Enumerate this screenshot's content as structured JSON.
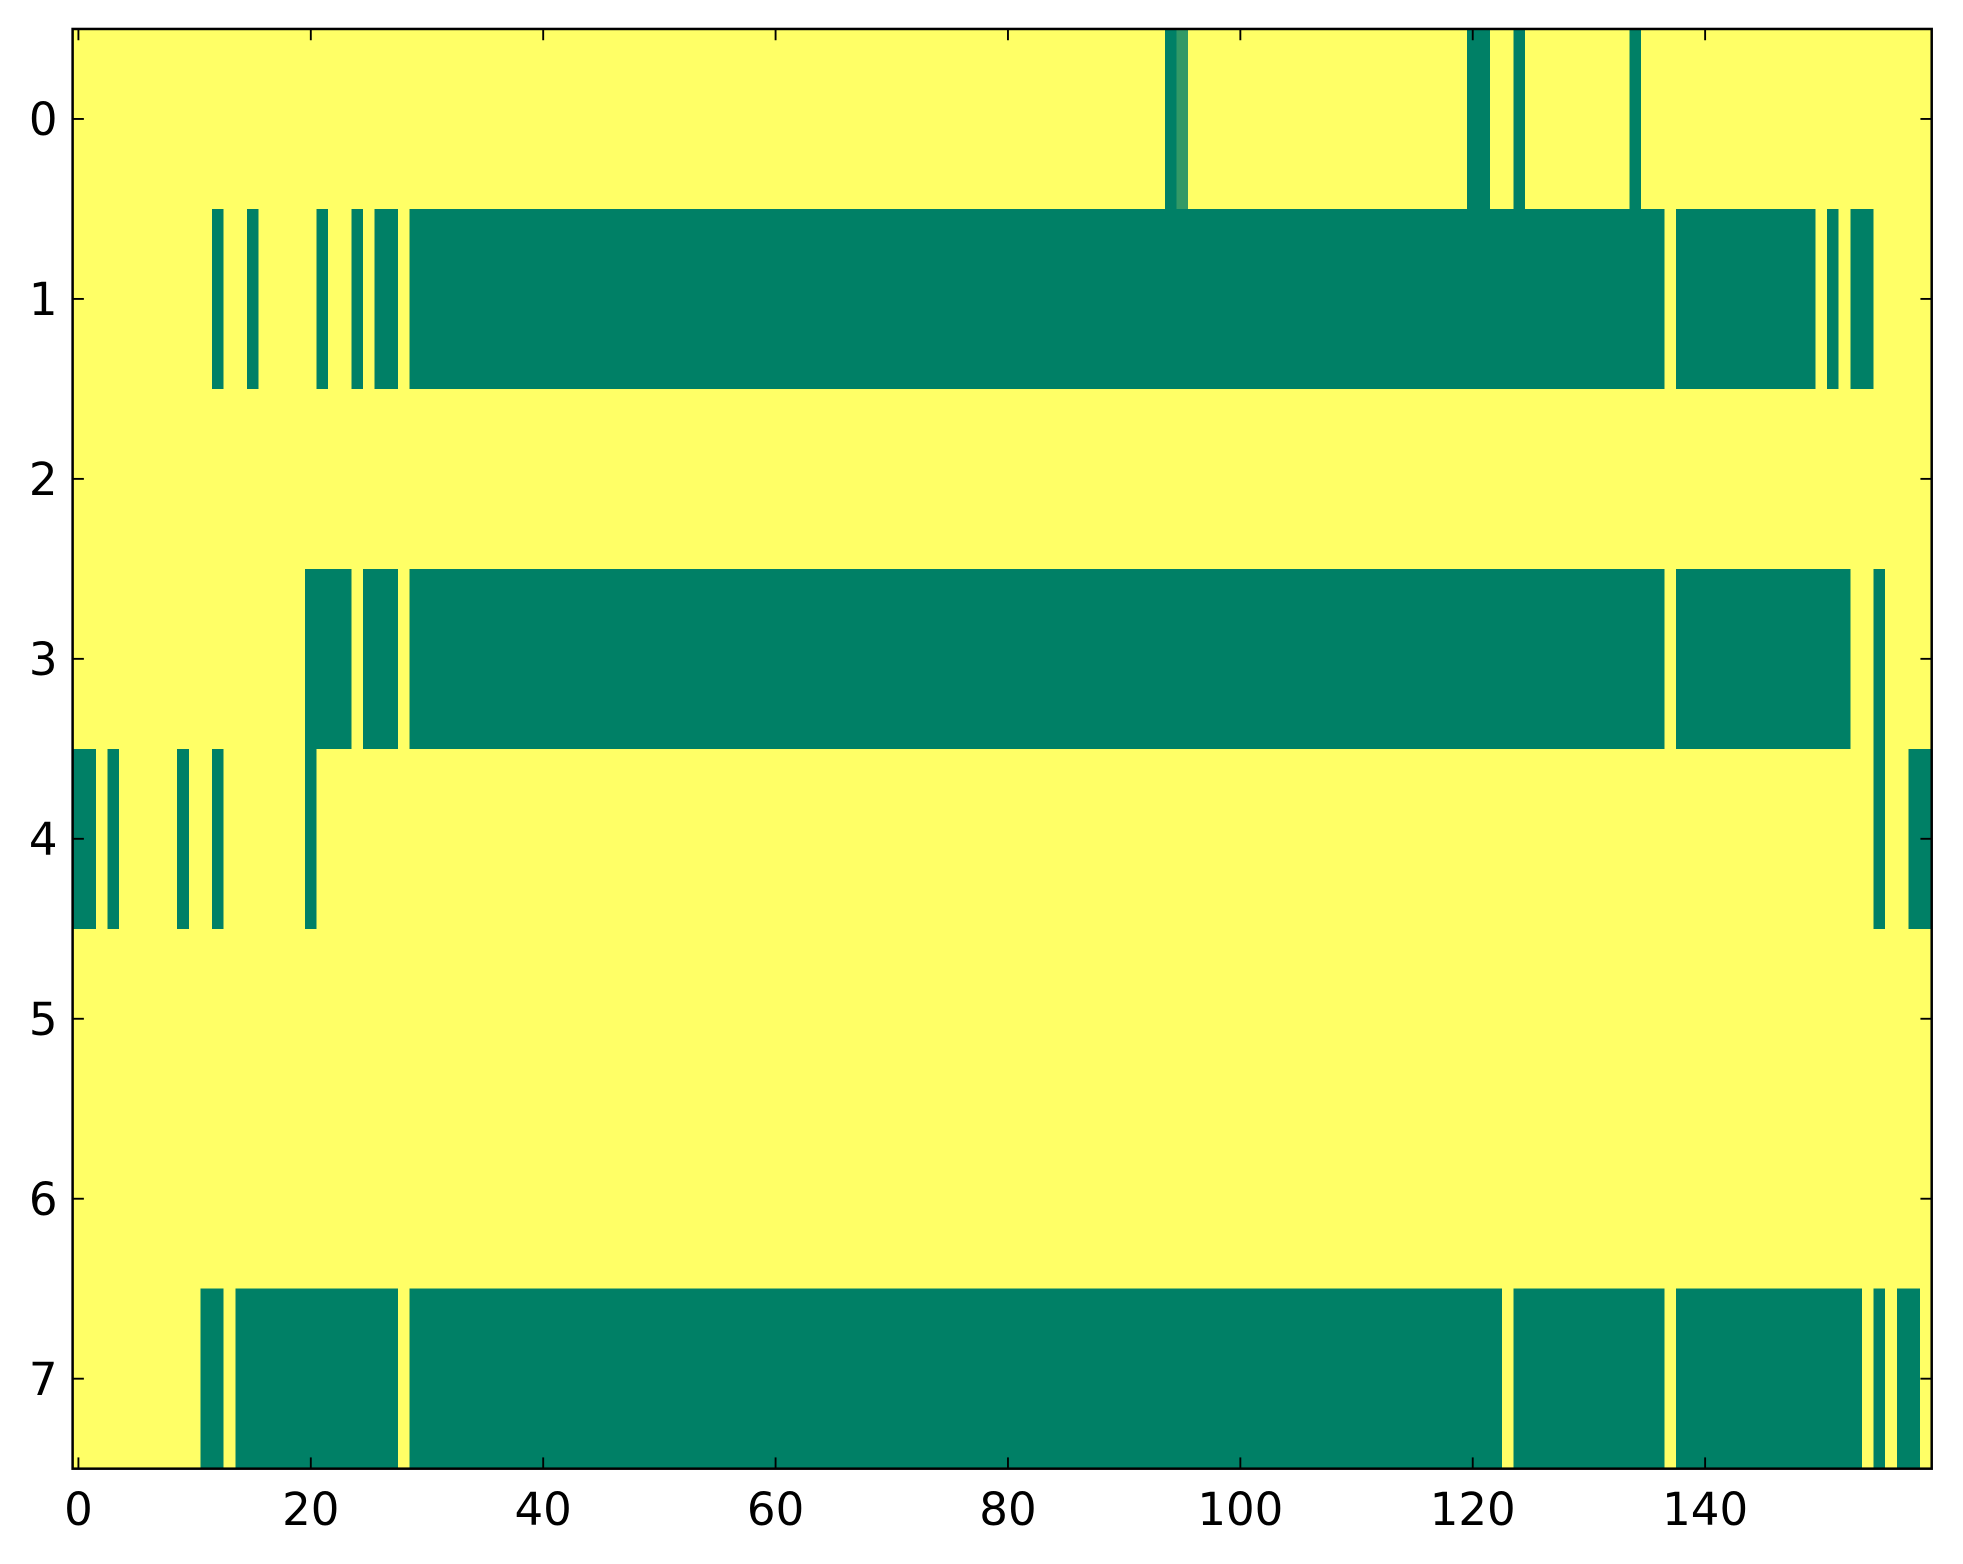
{
  "chart_data": {
    "type": "heatmap",
    "colormap": [
      "#008066",
      "#ffff66"
    ],
    "clim": [
      0,
      1
    ],
    "xlim": [
      -0.5,
      159.5
    ],
    "ylim": [
      7.5,
      -0.5
    ],
    "xticks": [
      0,
      20,
      40,
      60,
      80,
      100,
      120,
      140
    ],
    "yticks": [
      0,
      1,
      2,
      3,
      4,
      5,
      6,
      7
    ],
    "z": [
      [
        1,
        1,
        1,
        1,
        1,
        1,
        1,
        1,
        1,
        1,
        1,
        1,
        1,
        1,
        1,
        1,
        1,
        1,
        1,
        1,
        1,
        1,
        1,
        1,
        1,
        1,
        1,
        1,
        1,
        1,
        1,
        1,
        1,
        1,
        1,
        1,
        1,
        1,
        1,
        1,
        1,
        1,
        1,
        1,
        1,
        1,
        1,
        1,
        1,
        1,
        1,
        1,
        1,
        1,
        1,
        1,
        1,
        1,
        1,
        1,
        1,
        1,
        1,
        1,
        1,
        1,
        1,
        1,
        1,
        1,
        1,
        1,
        1,
        1,
        1,
        1,
        1,
        1,
        1,
        1,
        1,
        1,
        1,
        1,
        1,
        1,
        1,
        1,
        1,
        1,
        1,
        1,
        1,
        1,
        0,
        0.2,
        1,
        1,
        1,
        1,
        1,
        1,
        1,
        1,
        1,
        1,
        1,
        1,
        1,
        1,
        1,
        1,
        1,
        1,
        1,
        1,
        1,
        1,
        1,
        1,
        0,
        0,
        1,
        1,
        0,
        1,
        1,
        1,
        1,
        1,
        1,
        1,
        1,
        1,
        0,
        1,
        1,
        1,
        1,
        1,
        1,
        1,
        1,
        1,
        1,
        1,
        1,
        1,
        1,
        1,
        1,
        1,
        1,
        1,
        1,
        1,
        1,
        1,
        1,
        1
      ],
      [
        1,
        1,
        1,
        1,
        1,
        1,
        1,
        1,
        1,
        1,
        1,
        1,
        0,
        1,
        1,
        0,
        1,
        1,
        1,
        1,
        1,
        0,
        1,
        1,
        0,
        1,
        0,
        0,
        1,
        0,
        0,
        0,
        0,
        0,
        0,
        0,
        0,
        0,
        0,
        0,
        0,
        0,
        0,
        0,
        0,
        0,
        0,
        0,
        0,
        0,
        0,
        0,
        0,
        0,
        0,
        0,
        0,
        0,
        0,
        0,
        0,
        0,
        0,
        0,
        0,
        0,
        0,
        0,
        0,
        0,
        0,
        0,
        0,
        0,
        0,
        0,
        0,
        0,
        0,
        0,
        0,
        0,
        0,
        0,
        0,
        0,
        0,
        0,
        0,
        0,
        0,
        0,
        0,
        0,
        0,
        0,
        0,
        0,
        0,
        0,
        0,
        0,
        0,
        0,
        0,
        0,
        0,
        0,
        0,
        0,
        0,
        0,
        0,
        0,
        0,
        0,
        0,
        0,
        0,
        0,
        0,
        0,
        0,
        0,
        0,
        0,
        0,
        0,
        0,
        0,
        0,
        0,
        0,
        0,
        0,
        0,
        0,
        1,
        0,
        0,
        0,
        0,
        0,
        0,
        0,
        0,
        0,
        0,
        0,
        0,
        1,
        0,
        1,
        0,
        0,
        1,
        1,
        1,
        1,
        1
      ],
      [
        1,
        1,
        1,
        1,
        1,
        1,
        1,
        1,
        1,
        1,
        1,
        1,
        1,
        1,
        1,
        1,
        1,
        1,
        1,
        1,
        1,
        1,
        1,
        1,
        1,
        1,
        1,
        1,
        1,
        1,
        1,
        1,
        1,
        1,
        1,
        1,
        1,
        1,
        1,
        1,
        1,
        1,
        1,
        1,
        1,
        1,
        1,
        1,
        1,
        1,
        1,
        1,
        1,
        1,
        1,
        1,
        1,
        1,
        1,
        1,
        1,
        1,
        1,
        1,
        1,
        1,
        1,
        1,
        1,
        1,
        1,
        1,
        1,
        1,
        1,
        1,
        1,
        1,
        1,
        1,
        1,
        1,
        1,
        1,
        1,
        1,
        1,
        1,
        1,
        1,
        1,
        1,
        1,
        1,
        1,
        1,
        1,
        1,
        1,
        1,
        1,
        1,
        1,
        1,
        1,
        1,
        1,
        1,
        1,
        1,
        1,
        1,
        1,
        1,
        1,
        1,
        1,
        1,
        1,
        1,
        1,
        1,
        1,
        1,
        1,
        1,
        1,
        1,
        1,
        1,
        1,
        1,
        1,
        1,
        1,
        1,
        1,
        1,
        1,
        1,
        1,
        1,
        1,
        1,
        1,
        1,
        1,
        1,
        1,
        1,
        1,
        1,
        1,
        1,
        1,
        1,
        1,
        1,
        1,
        1
      ],
      [
        1,
        1,
        1,
        1,
        1,
        1,
        1,
        1,
        1,
        1,
        1,
        1,
        1,
        1,
        1,
        1,
        1,
        1,
        1,
        1,
        0,
        0,
        0,
        0,
        1,
        0,
        0,
        0,
        1,
        0,
        0,
        0,
        0,
        0,
        0,
        0,
        0,
        0,
        0,
        0,
        0,
        0,
        0,
        0,
        0,
        0,
        0,
        0,
        0,
        0,
        0,
        0,
        0,
        0,
        0,
        0,
        0,
        0,
        0,
        0,
        0,
        0,
        0,
        0,
        0,
        0,
        0,
        0,
        0,
        0,
        0,
        0,
        0,
        0,
        0,
        0,
        0,
        0,
        0,
        0,
        0,
        0,
        0,
        0,
        0,
        0,
        0,
        0,
        0,
        0,
        0,
        0,
        0,
        0,
        0,
        0,
        0,
        0,
        0,
        0,
        0,
        0,
        0,
        0,
        0,
        0,
        0,
        0,
        0,
        0,
        0,
        0,
        0,
        0,
        0,
        0,
        0,
        0,
        0,
        0,
        0,
        0,
        0,
        0,
        0,
        0,
        0,
        0,
        0,
        0,
        0,
        0,
        0,
        0,
        0,
        0,
        0,
        1,
        0,
        0,
        0,
        0,
        0,
        0,
        0,
        0,
        0,
        0,
        0,
        0,
        0,
        0,
        0,
        1,
        1,
        0,
        1,
        1,
        1,
        1
      ],
      [
        0,
        0,
        1,
        0,
        1,
        1,
        1,
        1,
        1,
        0,
        1,
        1,
        0,
        1,
        1,
        1,
        1,
        1,
        1,
        1,
        0,
        1,
        1,
        1,
        1,
        1,
        1,
        1,
        1,
        1,
        1,
        1,
        1,
        1,
        1,
        1,
        1,
        1,
        1,
        1,
        1,
        1,
        1,
        1,
        1,
        1,
        1,
        1,
        1,
        1,
        1,
        1,
        1,
        1,
        1,
        1,
        1,
        1,
        1,
        1,
        1,
        1,
        1,
        1,
        1,
        1,
        1,
        1,
        1,
        1,
        1,
        1,
        1,
        1,
        1,
        1,
        1,
        1,
        1,
        1,
        1,
        1,
        1,
        1,
        1,
        1,
        1,
        1,
        1,
        1,
        1,
        1,
        1,
        1,
        1,
        1,
        1,
        1,
        1,
        1,
        1,
        1,
        1,
        1,
        1,
        1,
        1,
        1,
        1,
        1,
        1,
        1,
        1,
        1,
        1,
        1,
        1,
        1,
        1,
        1,
        1,
        1,
        1,
        1,
        1,
        1,
        1,
        1,
        1,
        1,
        1,
        1,
        1,
        1,
        1,
        1,
        1,
        1,
        1,
        1,
        1,
        1,
        1,
        1,
        1,
        1,
        1,
        1,
        1,
        1,
        1,
        1,
        1,
        1,
        1,
        0,
        1,
        1,
        0,
        0
      ],
      [
        1,
        1,
        1,
        1,
        1,
        1,
        1,
        1,
        1,
        1,
        1,
        1,
        1,
        1,
        1,
        1,
        1,
        1,
        1,
        1,
        1,
        1,
        1,
        1,
        1,
        1,
        1,
        1,
        1,
        1,
        1,
        1,
        1,
        1,
        1,
        1,
        1,
        1,
        1,
        1,
        1,
        1,
        1,
        1,
        1,
        1,
        1,
        1,
        1,
        1,
        1,
        1,
        1,
        1,
        1,
        1,
        1,
        1,
        1,
        1,
        1,
        1,
        1,
        1,
        1,
        1,
        1,
        1,
        1,
        1,
        1,
        1,
        1,
        1,
        1,
        1,
        1,
        1,
        1,
        1,
        1,
        1,
        1,
        1,
        1,
        1,
        1,
        1,
        1,
        1,
        1,
        1,
        1,
        1,
        1,
        1,
        1,
        1,
        1,
        1,
        1,
        1,
        1,
        1,
        1,
        1,
        1,
        1,
        1,
        1,
        1,
        1,
        1,
        1,
        1,
        1,
        1,
        1,
        1,
        1,
        1,
        1,
        1,
        1,
        1,
        1,
        1,
        1,
        1,
        1,
        1,
        1,
        1,
        1,
        1,
        1,
        1,
        1,
        1,
        1,
        1,
        1,
        1,
        1,
        1,
        1,
        1,
        1,
        1,
        1,
        1,
        1,
        1,
        1,
        1,
        1,
        1,
        1,
        1,
        1
      ],
      [
        1,
        1,
        1,
        1,
        1,
        1,
        1,
        1,
        1,
        1,
        1,
        1,
        1,
        1,
        1,
        1,
        1,
        1,
        1,
        1,
        1,
        1,
        1,
        1,
        1,
        1,
        1,
        1,
        1,
        1,
        1,
        1,
        1,
        1,
        1,
        1,
        1,
        1,
        1,
        1,
        1,
        1,
        1,
        1,
        1,
        1,
        1,
        1,
        1,
        1,
        1,
        1,
        1,
        1,
        1,
        1,
        1,
        1,
        1,
        1,
        1,
        1,
        1,
        1,
        1,
        1,
        1,
        1,
        1,
        1,
        1,
        1,
        1,
        1,
        1,
        1,
        1,
        1,
        1,
        1,
        1,
        1,
        1,
        1,
        1,
        1,
        1,
        1,
        1,
        1,
        1,
        1,
        1,
        1,
        1,
        1,
        1,
        1,
        1,
        1,
        1,
        1,
        1,
        1,
        1,
        1,
        1,
        1,
        1,
        1,
        1,
        1,
        1,
        1,
        1,
        1,
        1,
        1,
        1,
        1,
        1,
        1,
        1,
        1,
        1,
        1,
        1,
        1,
        1,
        1,
        1,
        1,
        1,
        1,
        1,
        1,
        1,
        1,
        1,
        1,
        1,
        1,
        1,
        1,
        1,
        1,
        1,
        1,
        1,
        1,
        1,
        1,
        1,
        1,
        1,
        1,
        1,
        1,
        1,
        1
      ],
      [
        1,
        1,
        1,
        1,
        1,
        1,
        1,
        1,
        1,
        1,
        1,
        0,
        0,
        1,
        0,
        0,
        0,
        0,
        0,
        0,
        0,
        0,
        0,
        0,
        0,
        0,
        0,
        0,
        1,
        0,
        0,
        0,
        0,
        0,
        0,
        0,
        0,
        0,
        0,
        0,
        0,
        0,
        0,
        0,
        0,
        0,
        0,
        0,
        0,
        0,
        0,
        0,
        0,
        0,
        0,
        0,
        0,
        0,
        0,
        0,
        0,
        0,
        0,
        0,
        0,
        0,
        0,
        0,
        0,
        0,
        0,
        0,
        0,
        0,
        0,
        0,
        0,
        0,
        0,
        0,
        0,
        0,
        0,
        0,
        0,
        0,
        0,
        0,
        0,
        0,
        0,
        0,
        0,
        0,
        0,
        0,
        0,
        0,
        0,
        0,
        0,
        0,
        0,
        0,
        0,
        0,
        0,
        0,
        0,
        0,
        0,
        0,
        0,
        0,
        0,
        0,
        0,
        0,
        0,
        0,
        0,
        0,
        0,
        1,
        0,
        0,
        0,
        0,
        0,
        0,
        0,
        0,
        0,
        0,
        0,
        0,
        0,
        1,
        0,
        0,
        0,
        0,
        0,
        0,
        0,
        0,
        0,
        0,
        0,
        0,
        0,
        0,
        0,
        0,
        1,
        0,
        1,
        0,
        0,
        1
      ]
    ]
  }
}
